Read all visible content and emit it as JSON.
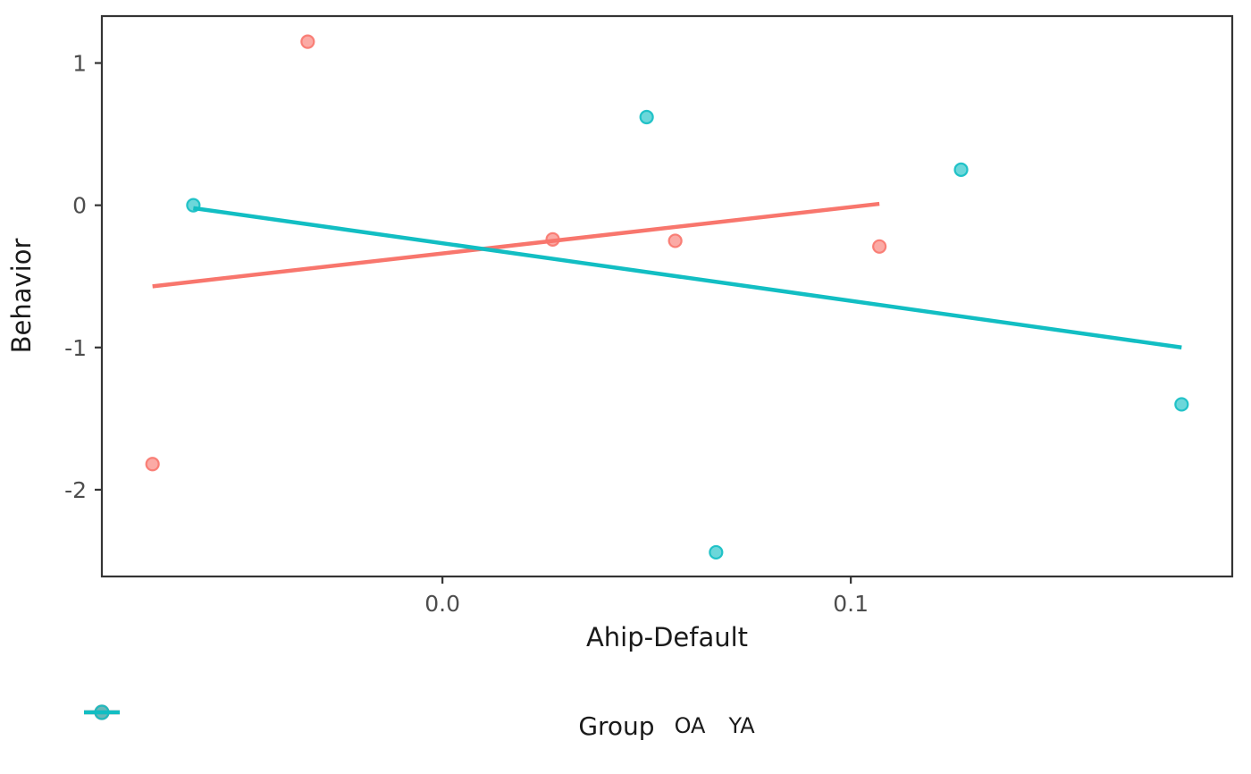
{
  "figure": {
    "background": "#ffffff",
    "border_color": "#343434",
    "tick_color": "#343434",
    "tick_label_color": "#4d4d4d",
    "title_color": "#1a1a1a"
  },
  "chart_data": {
    "type": "scatter",
    "title": "",
    "xlabel": "Ahip-Default",
    "ylabel": "Behavior",
    "xlim": [
      -0.0834,
      0.1934
    ],
    "ylim": [
      -2.61,
      1.33
    ],
    "grid": false,
    "x_ticks": [
      {
        "value": 0.0,
        "label": "0.0"
      },
      {
        "value": 0.1,
        "label": "0.1"
      }
    ],
    "y_ticks": [
      {
        "value": 1,
        "label": "1"
      },
      {
        "value": 0,
        "label": "0"
      },
      {
        "value": -1,
        "label": "-1"
      },
      {
        "value": -2,
        "label": "-2"
      }
    ],
    "legend": {
      "title": "Group",
      "position": "bottom"
    },
    "point_style": {
      "radius": 7,
      "stroke_width": 2.2,
      "fill_opacity": 0.62,
      "stroke_opacity": 0.9
    },
    "line_style": {
      "stroke_width": 4.5
    },
    "series": [
      {
        "name": "OA",
        "color": "#f8766d",
        "points": [
          {
            "x": -0.033,
            "y": 1.15
          },
          {
            "x": 0.027,
            "y": -0.24
          },
          {
            "x": 0.057,
            "y": -0.25
          },
          {
            "x": 0.107,
            "y": -0.29
          },
          {
            "x": -0.071,
            "y": -1.82
          }
        ],
        "trend_line": {
          "x1": -0.071,
          "y1": -0.57,
          "x2": 0.107,
          "y2": 0.01
        }
      },
      {
        "name": "YA",
        "color": "#12bec3",
        "points": [
          {
            "x": -0.061,
            "y": 0.0
          },
          {
            "x": 0.05,
            "y": 0.62
          },
          {
            "x": 0.127,
            "y": 0.25
          },
          {
            "x": 0.181,
            "y": -1.4
          },
          {
            "x": 0.067,
            "y": -2.44
          }
        ],
        "trend_line": {
          "x1": -0.061,
          "y1": -0.02,
          "x2": 0.181,
          "y2": -1.0
        }
      }
    ]
  }
}
